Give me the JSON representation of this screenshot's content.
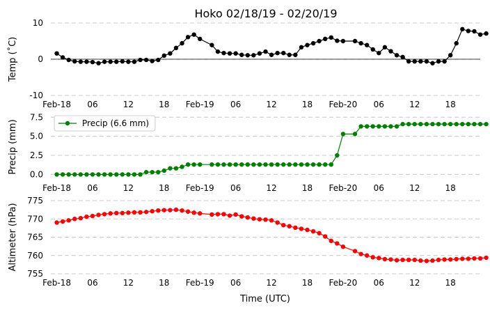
{
  "chart_data": [
    {
      "type": "line",
      "title": "Hoko 02/18/19 - 02/20/19",
      "ylabel": "Temp ($^{\\circ}$C)",
      "ylabel_display": "Temp (˚C)",
      "ylim": [
        -10,
        10
      ],
      "yticks": [
        -10,
        0,
        10
      ],
      "xlim": [
        -1,
        71
      ],
      "xtick_positions": [
        0,
        6,
        12,
        18,
        24,
        30,
        36,
        42,
        48,
        54,
        60,
        66
      ],
      "xtick_labels": [
        "Feb-18",
        "06",
        "12",
        "18",
        "Feb-19",
        "06",
        "12",
        "18",
        "Feb-20",
        "06",
        "12",
        "18"
      ],
      "grid": "horizontal dashed",
      "zero_line": true,
      "series": [
        {
          "color": "#000000",
          "points": [
            [
              0,
              1.6
            ],
            [
              1,
              0.5
            ],
            [
              2,
              -0.2
            ],
            [
              3,
              -0.6
            ],
            [
              4,
              -0.7
            ],
            [
              5,
              -0.7
            ],
            [
              6,
              -0.8
            ],
            [
              7,
              -1.1
            ],
            [
              8,
              -0.7
            ],
            [
              9,
              -0.7
            ],
            [
              10,
              -0.7
            ],
            [
              11,
              -0.6
            ],
            [
              12,
              -0.7
            ],
            [
              13,
              -0.7
            ],
            [
              14,
              -0.2
            ],
            [
              15,
              -0.2
            ],
            [
              16,
              -0.5
            ],
            [
              17,
              -0.2
            ],
            [
              18,
              1.0
            ],
            [
              19,
              1.6
            ],
            [
              20,
              3.1
            ],
            [
              21,
              4.4
            ],
            [
              22,
              6.1
            ],
            [
              23,
              6.8
            ],
            [
              24,
              5.6
            ],
            [
              26,
              3.9
            ],
            [
              27,
              2.1
            ],
            [
              28,
              1.7
            ],
            [
              29,
              1.6
            ],
            [
              30,
              1.6
            ],
            [
              31,
              1.2
            ],
            [
              32,
              1.1
            ],
            [
              33,
              1.1
            ],
            [
              34,
              1.6
            ],
            [
              35,
              2.1
            ],
            [
              36,
              1.2
            ],
            [
              37,
              1.7
            ],
            [
              38,
              1.7
            ],
            [
              39,
              1.2
            ],
            [
              40,
              1.2
            ],
            [
              41,
              3.3
            ],
            [
              42,
              3.9
            ],
            [
              43,
              4.4
            ],
            [
              44,
              5.0
            ],
            [
              45,
              5.6
            ],
            [
              46,
              6.0
            ],
            [
              47,
              5.1
            ],
            [
              48,
              5.0
            ],
            [
              50,
              5.0
            ],
            [
              51,
              4.4
            ],
            [
              52,
              3.9
            ],
            [
              53,
              2.7
            ],
            [
              54,
              1.7
            ],
            [
              55,
              3.3
            ],
            [
              56,
              2.2
            ],
            [
              57,
              1.1
            ],
            [
              58,
              0.6
            ],
            [
              59,
              -0.6
            ],
            [
              60,
              -0.6
            ],
            [
              61,
              -0.6
            ],
            [
              62,
              -0.6
            ],
            [
              63,
              -1.1
            ],
            [
              64,
              -0.6
            ],
            [
              65,
              -0.6
            ],
            [
              66,
              1.1
            ],
            [
              67,
              4.4
            ],
            [
              68,
              8.3
            ],
            [
              69,
              7.8
            ],
            [
              70,
              7.7
            ],
            [
              71,
              6.8
            ],
            [
              72,
              7.1
            ]
          ]
        }
      ]
    },
    {
      "type": "line",
      "ylabel": "Precip (mm)",
      "ylim": [
        -0.6,
        7.8
      ],
      "yticks": [
        0.0,
        2.5,
        5.0,
        7.5
      ],
      "ytick_labels": [
        "0.0",
        "2.5",
        "5.0",
        "7.5"
      ],
      "xlim": [
        -1,
        71
      ],
      "xtick_positions": [
        0,
        6,
        12,
        18,
        24,
        30,
        36,
        42,
        48,
        54,
        60,
        66
      ],
      "xtick_labels": [
        "Feb-18",
        "06",
        "12",
        "18",
        "Feb-19",
        "06",
        "12",
        "18",
        "Feb-20",
        "06",
        "12",
        "18"
      ],
      "grid": "horizontal dashed",
      "legend": "top-left",
      "series": [
        {
          "name": "Precip (6.6 mm)",
          "color": "#008000",
          "points": [
            [
              0,
              0.0
            ],
            [
              1,
              0.0
            ],
            [
              2,
              0.0
            ],
            [
              3,
              0.0
            ],
            [
              4,
              0.0
            ],
            [
              5,
              0.0
            ],
            [
              6,
              0.0
            ],
            [
              7,
              0.0
            ],
            [
              8,
              0.0
            ],
            [
              9,
              0.0
            ],
            [
              10,
              0.0
            ],
            [
              11,
              0.0
            ],
            [
              12,
              0.0
            ],
            [
              13,
              0.0
            ],
            [
              14,
              0.0
            ],
            [
              15,
              0.3
            ],
            [
              16,
              0.3
            ],
            [
              17,
              0.3
            ],
            [
              18,
              0.5
            ],
            [
              19,
              0.8
            ],
            [
              20,
              0.8
            ],
            [
              21,
              1.0
            ],
            [
              22,
              1.3
            ],
            [
              23,
              1.3
            ],
            [
              24,
              1.3
            ],
            [
              26,
              1.3
            ],
            [
              27,
              1.3
            ],
            [
              28,
              1.3
            ],
            [
              29,
              1.3
            ],
            [
              30,
              1.3
            ],
            [
              31,
              1.3
            ],
            [
              32,
              1.3
            ],
            [
              33,
              1.3
            ],
            [
              34,
              1.3
            ],
            [
              35,
              1.3
            ],
            [
              36,
              1.3
            ],
            [
              37,
              1.3
            ],
            [
              38,
              1.3
            ],
            [
              39,
              1.3
            ],
            [
              40,
              1.3
            ],
            [
              41,
              1.3
            ],
            [
              42,
              1.3
            ],
            [
              43,
              1.3
            ],
            [
              44,
              1.3
            ],
            [
              45,
              1.3
            ],
            [
              46,
              1.3
            ],
            [
              47,
              2.5
            ],
            [
              48,
              5.3
            ],
            [
              50,
              5.3
            ],
            [
              51,
              6.3
            ],
            [
              52,
              6.3
            ],
            [
              53,
              6.3
            ],
            [
              54,
              6.3
            ],
            [
              55,
              6.3
            ],
            [
              56,
              6.3
            ],
            [
              57,
              6.3
            ],
            [
              58,
              6.6
            ],
            [
              59,
              6.6
            ],
            [
              60,
              6.6
            ],
            [
              61,
              6.6
            ],
            [
              62,
              6.6
            ],
            [
              63,
              6.6
            ],
            [
              64,
              6.6
            ],
            [
              65,
              6.6
            ],
            [
              66,
              6.6
            ],
            [
              67,
              6.6
            ],
            [
              68,
              6.6
            ],
            [
              69,
              6.6
            ],
            [
              70,
              6.6
            ],
            [
              71,
              6.6
            ],
            [
              72,
              6.6
            ]
          ]
        }
      ]
    },
    {
      "type": "line",
      "ylabel": "Altimeter (hPa)",
      "xlabel": "Time (UTC)",
      "ylim": [
        755,
        775
      ],
      "yticks": [
        755,
        760,
        765,
        770,
        775
      ],
      "xlim": [
        -1,
        71
      ],
      "xtick_positions": [
        0,
        6,
        12,
        18,
        24,
        30,
        36,
        42,
        48,
        54,
        60,
        66
      ],
      "xtick_labels": [
        "Feb-18",
        "06",
        "12",
        "18",
        "Feb-19",
        "06",
        "12",
        "18",
        "Feb-20",
        "06",
        "12",
        "18"
      ],
      "grid": "horizontal dashed",
      "series": [
        {
          "color": "#ff0000",
          "points": [
            [
              0,
              769.0
            ],
            [
              1,
              769.3
            ],
            [
              2,
              769.6
            ],
            [
              3,
              770.0
            ],
            [
              4,
              770.2
            ],
            [
              5,
              770.6
            ],
            [
              6,
              770.8
            ],
            [
              7,
              771.1
            ],
            [
              8,
              771.3
            ],
            [
              9,
              771.5
            ],
            [
              10,
              771.6
            ],
            [
              11,
              771.6
            ],
            [
              12,
              771.7
            ],
            [
              13,
              771.8
            ],
            [
              14,
              771.8
            ],
            [
              15,
              771.9
            ],
            [
              16,
              772.1
            ],
            [
              17,
              772.3
            ],
            [
              18,
              772.4
            ],
            [
              19,
              772.4
            ],
            [
              20,
              772.5
            ],
            [
              21,
              772.3
            ],
            [
              22,
              772.0
            ],
            [
              23,
              771.7
            ],
            [
              24,
              771.5
            ],
            [
              26,
              771.2
            ],
            [
              27,
              771.3
            ],
            [
              28,
              771.3
            ],
            [
              29,
              770.9
            ],
            [
              30,
              771.2
            ],
            [
              31,
              770.7
            ],
            [
              32,
              770.4
            ],
            [
              33,
              770.1
            ],
            [
              34,
              769.9
            ],
            [
              35,
              769.8
            ],
            [
              36,
              769.6
            ],
            [
              37,
              769.0
            ],
            [
              38,
              768.3
            ],
            [
              39,
              768.0
            ],
            [
              40,
              767.6
            ],
            [
              41,
              767.3
            ],
            [
              42,
              767.0
            ],
            [
              43,
              766.6
            ],
            [
              44,
              766.1
            ],
            [
              45,
              765.2
            ],
            [
              46,
              764.0
            ],
            [
              47,
              763.3
            ],
            [
              48,
              762.4
            ],
            [
              50,
              761.2
            ],
            [
              51,
              760.4
            ],
            [
              52,
              760.0
            ],
            [
              53,
              759.5
            ],
            [
              54,
              759.3
            ],
            [
              55,
              759.0
            ],
            [
              56,
              758.9
            ],
            [
              57,
              758.7
            ],
            [
              58,
              758.8
            ],
            [
              59,
              758.8
            ],
            [
              60,
              758.8
            ],
            [
              61,
              758.6
            ],
            [
              62,
              758.5
            ],
            [
              63,
              758.6
            ],
            [
              64,
              758.8
            ],
            [
              65,
              758.9
            ],
            [
              66,
              758.9
            ],
            [
              67,
              759.0
            ],
            [
              68,
              759.1
            ],
            [
              69,
              759.1
            ],
            [
              70,
              759.2
            ],
            [
              71,
              759.2
            ],
            [
              72,
              759.4
            ]
          ]
        }
      ]
    }
  ]
}
